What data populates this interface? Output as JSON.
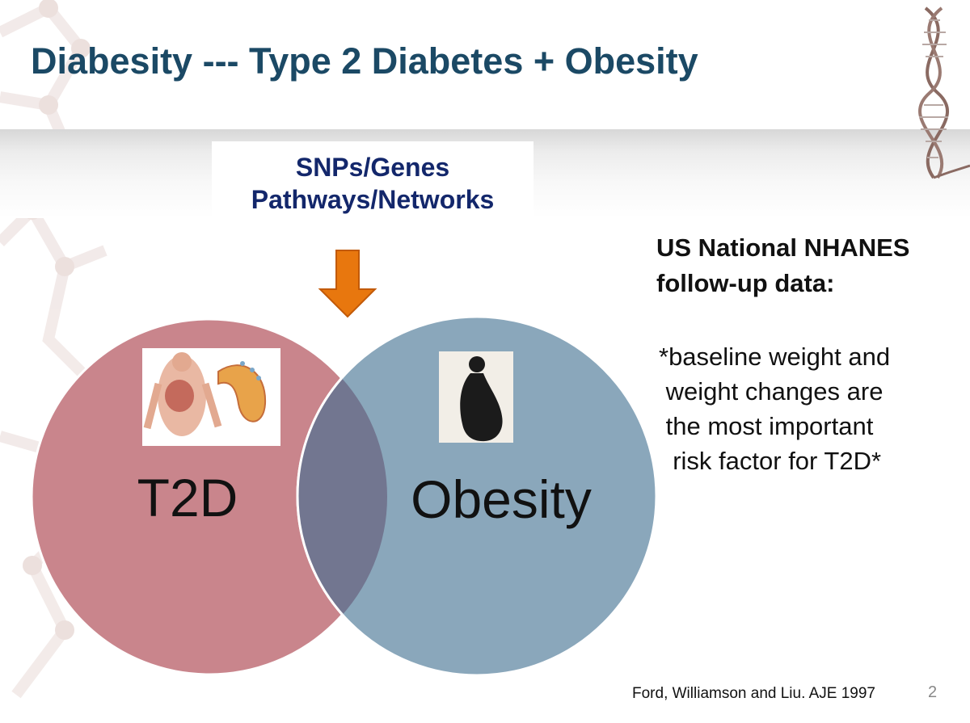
{
  "slide": {
    "title": "Diabesity --- Type 2 Diabetes + Obesity",
    "page_number": "2"
  },
  "genetics": {
    "line1": "SNPs/Genes",
    "line2": "Pathways/Networks"
  },
  "venn": {
    "left_label": "T2D",
    "right_label": "Obesity",
    "left_color": "#c9858c",
    "right_color": "#8aa7bb",
    "overlap_color": "#727690"
  },
  "arrow_color": "#e8770e",
  "study": {
    "heading_line1": "US National NHANES",
    "heading_line2": "follow-up data:",
    "finding_lines": [
      "*baseline weight and",
      " weight changes are",
      " the most important",
      "  risk factor for T2D*"
    ]
  },
  "citation": "Ford, Williamson and Liu. AJE 1997",
  "icons": [
    "dna-helix-icon",
    "anatomy-pancreas-image",
    "obese-silhouette-image",
    "down-arrow-icon"
  ]
}
